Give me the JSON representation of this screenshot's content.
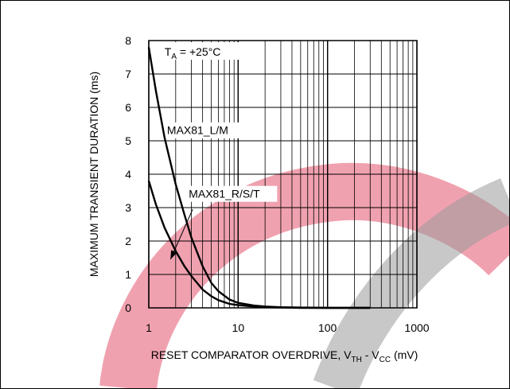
{
  "chart_data": {
    "type": "line",
    "x_scale": "log",
    "xlim": [
      1,
      1000
    ],
    "ylim": [
      0,
      8
    ],
    "x_ticks": [
      1,
      10,
      100,
      1000
    ],
    "x_tick_labels": [
      "1",
      "10",
      "100",
      "1000"
    ],
    "y_ticks": [
      0,
      1,
      2,
      3,
      4,
      5,
      6,
      7,
      8
    ],
    "y_tick_labels": [
      "0",
      "1",
      "2",
      "3",
      "4",
      "5",
      "6",
      "7",
      "8"
    ],
    "grid": true,
    "ylabel": "MAXIMUM TRANSIENT DURATION (ms)",
    "xlabel": {
      "prefix": "RESET COMPARATOR OVERDRIVE, V",
      "sub1": "TH",
      "mid": " - V",
      "sub2": "CC",
      "suffix": " (mV)"
    },
    "condition": {
      "prefix": "T",
      "sub": "A",
      "suffix": " = +25°C"
    },
    "series": [
      {
        "name": "MAX81_L/M",
        "x": [
          1,
          1.2,
          1.5,
          2,
          2.5,
          3,
          4,
          5,
          6,
          8,
          10,
          15,
          20,
          30,
          50,
          100,
          300
        ],
        "y": [
          7.8,
          6.5,
          5.1,
          3.7,
          2.8,
          2.1,
          1.25,
          0.75,
          0.5,
          0.25,
          0.15,
          0.07,
          0.04,
          0.02,
          0.01,
          0.0,
          0.0
        ]
      },
      {
        "name": "MAX81_R/S/T",
        "x": [
          1,
          1.2,
          1.5,
          2,
          2.5,
          3,
          4,
          5,
          6,
          8,
          10,
          15,
          20,
          30,
          50,
          100,
          300
        ],
        "y": [
          3.8,
          3.1,
          2.4,
          1.7,
          1.25,
          0.95,
          0.55,
          0.35,
          0.23,
          0.12,
          0.08,
          0.04,
          0.02,
          0.01,
          0.0,
          0.0,
          0.0
        ]
      }
    ],
    "annotations": [
      {
        "text": "MAX81_L/M",
        "series": "MAX81_L/M"
      },
      {
        "text": "MAX81_R/S/T",
        "series": "MAX81_R/S/T",
        "arrow": true
      }
    ]
  },
  "colors": {
    "curve": "#000000",
    "grid": "#000000",
    "watermark_red": "#e3536d",
    "watermark_gray": "#a6a6a6"
  }
}
